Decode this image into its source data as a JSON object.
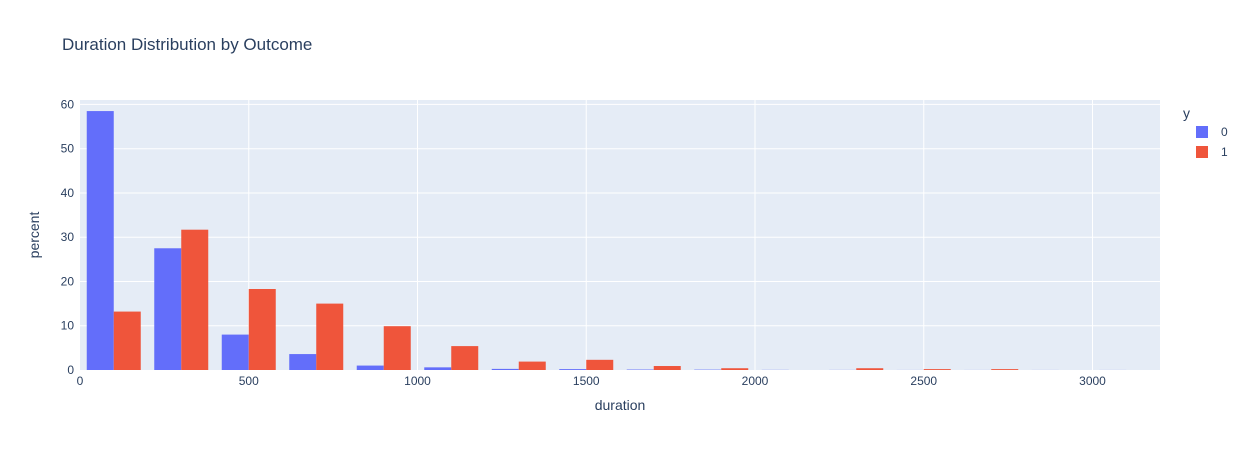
{
  "chart_data": {
    "type": "bar",
    "title": "Duration Distribution by Outcome",
    "xlabel": "duration",
    "ylabel": "percent",
    "xlim": [
      0,
      3200
    ],
    "ylim": [
      0,
      61
    ],
    "xticks": [
      0,
      500,
      1000,
      1500,
      2000,
      2500,
      3000
    ],
    "xtick_labels": [
      "0",
      "500",
      "1000",
      "1500",
      "2000",
      "2500",
      "3000"
    ],
    "yticks": [
      0,
      10,
      20,
      30,
      40,
      50,
      60
    ],
    "ytick_labels": [
      "0",
      "10",
      "20",
      "30",
      "40",
      "50",
      "60"
    ],
    "bin_size": 200,
    "bin_starts": [
      0,
      200,
      400,
      600,
      800,
      1000,
      1200,
      1400,
      1600,
      1800,
      2000,
      2200,
      2400,
      2600,
      2800,
      3000
    ],
    "grid": true,
    "legend": {
      "title": "y",
      "position": "top-right"
    },
    "series": [
      {
        "name": "0",
        "color": "#636efa",
        "values": [
          58.5,
          27.5,
          8.0,
          3.6,
          1.0,
          0.6,
          0.25,
          0.2,
          0.1,
          0.08,
          0.03,
          0.02,
          0.01,
          0.01,
          0.01,
          0.01
        ]
      },
      {
        "name": "1",
        "color": "#ef553b",
        "values": [
          13.2,
          31.7,
          18.3,
          15.0,
          9.9,
          5.4,
          1.9,
          2.3,
          0.9,
          0.4,
          0.0,
          0.4,
          0.2,
          0.2,
          0.0,
          0.0
        ]
      }
    ]
  }
}
